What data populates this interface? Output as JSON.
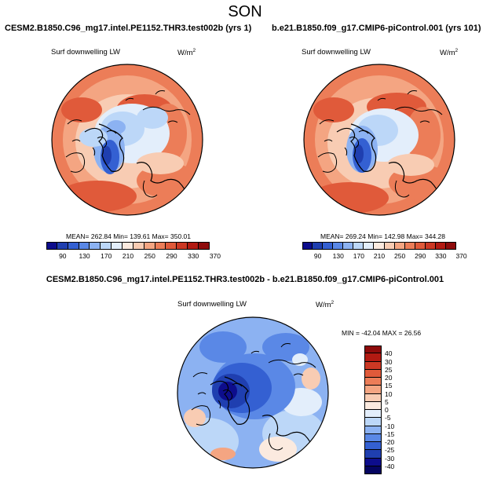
{
  "page": {
    "season_title": "SON"
  },
  "panels": {
    "left": {
      "title": "CESM2.B1850.C96_mg17.intel.PE1152.THR3.test002b (yrs 1)",
      "variable": "Surf downwelling LW",
      "units_base": "W/m",
      "units_exp": "2",
      "stats": "MEAN= 262.84   Min= 139.61   Max= 350.01"
    },
    "right": {
      "title": "b.e21.B1850.f09_g17.CMIP6-piControl.001 (yrs 101)",
      "variable": "Surf downwelling LW",
      "units_base": "W/m",
      "units_exp": "2",
      "stats": "MEAN= 269.24   Min= 142.98   Max= 344.28"
    },
    "diff": {
      "title": "CESM2.B1850.C96_mg17.intel.PE1152.THR3.test002b - b.e21.B1850.f09_g17.CMIP6-piControl.001",
      "variable": "Surf downwelling LW",
      "units_base": "W/m",
      "units_exp": "2",
      "stats": "MIN = -42.04  MAX =  26.56"
    }
  },
  "colorbars": {
    "abs": {
      "ticks": [
        "90",
        "130",
        "170",
        "210",
        "250",
        "290",
        "330",
        "370"
      ],
      "colors": [
        "#0d0d8c",
        "#1f3fb0",
        "#3460d2",
        "#5a88e6",
        "#8cb2f2",
        "#bcd7f8",
        "#e3eefb",
        "#fbeadf",
        "#f8ccb3",
        "#f4a582",
        "#ec7d58",
        "#e05a3a",
        "#cc3824",
        "#b21a12",
        "#8e0b0b"
      ]
    },
    "diff": {
      "ticks": [
        "40",
        "30",
        "25",
        "20",
        "15",
        "10",
        "5",
        "0",
        "-5",
        "-10",
        "-15",
        "-20",
        "-25",
        "-30",
        "-40"
      ],
      "colors": [
        "#8e0b0b",
        "#b21a12",
        "#cc3824",
        "#e05a3a",
        "#ec7d58",
        "#f4a582",
        "#f8ccb3",
        "#fbeadf",
        "#e3eefb",
        "#bcd7f8",
        "#8cb2f2",
        "#5a88e6",
        "#3460d2",
        "#1f3fb0",
        "#0d0d8c",
        "#050560"
      ]
    }
  }
}
